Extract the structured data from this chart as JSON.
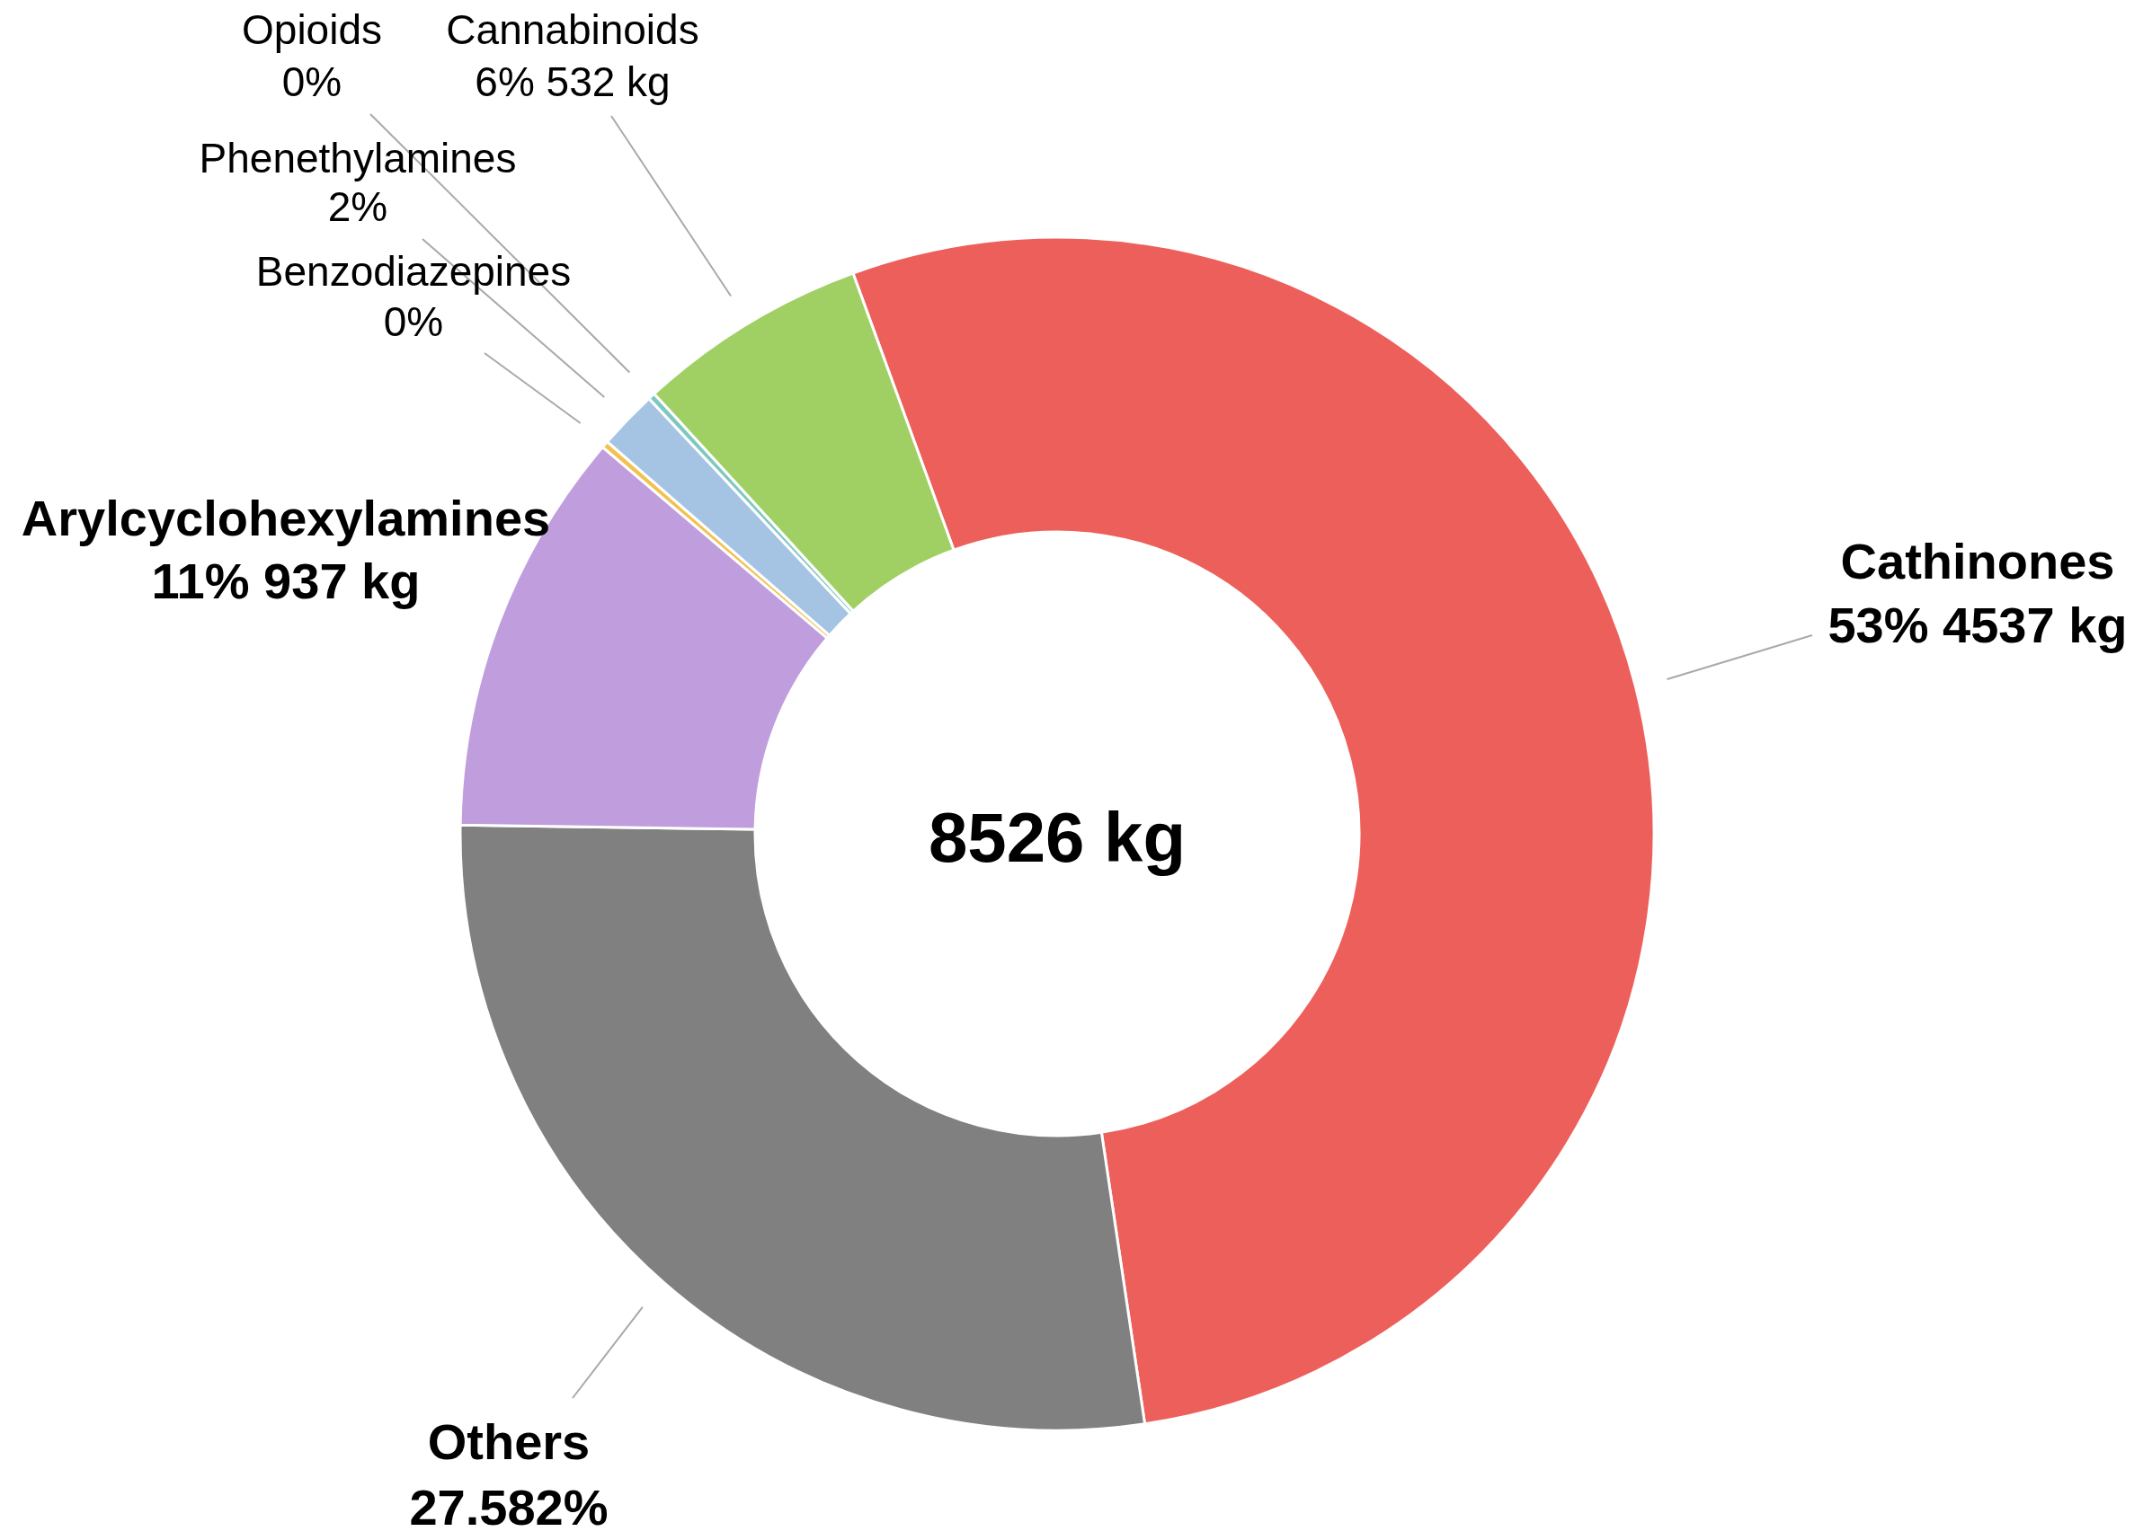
{
  "chart_data": {
    "type": "donut",
    "categories": [
      "Cathinones",
      "Others",
      "Arylcyclohexylamines",
      "Benzodiazepines",
      "Phenethylamines",
      "Opioids",
      "Cannabinoids"
    ],
    "values": [
      53.21,
      27.582,
      10.99,
      0.19,
      1.6,
      0.19,
      6.24
    ],
    "colors": [
      "#ed5f5a",
      "#808080",
      "#c09ede",
      "#f2c14e",
      "#a5c4e3",
      "#7ec8c0",
      "#a0d064"
    ],
    "value_labels": [
      "53% 4537 kg",
      "27.582%",
      "11% 937 kg",
      "0%",
      "2%",
      "0%",
      "6% 532 kg"
    ],
    "annotations": [
      "8526 kg"
    ]
  }
}
